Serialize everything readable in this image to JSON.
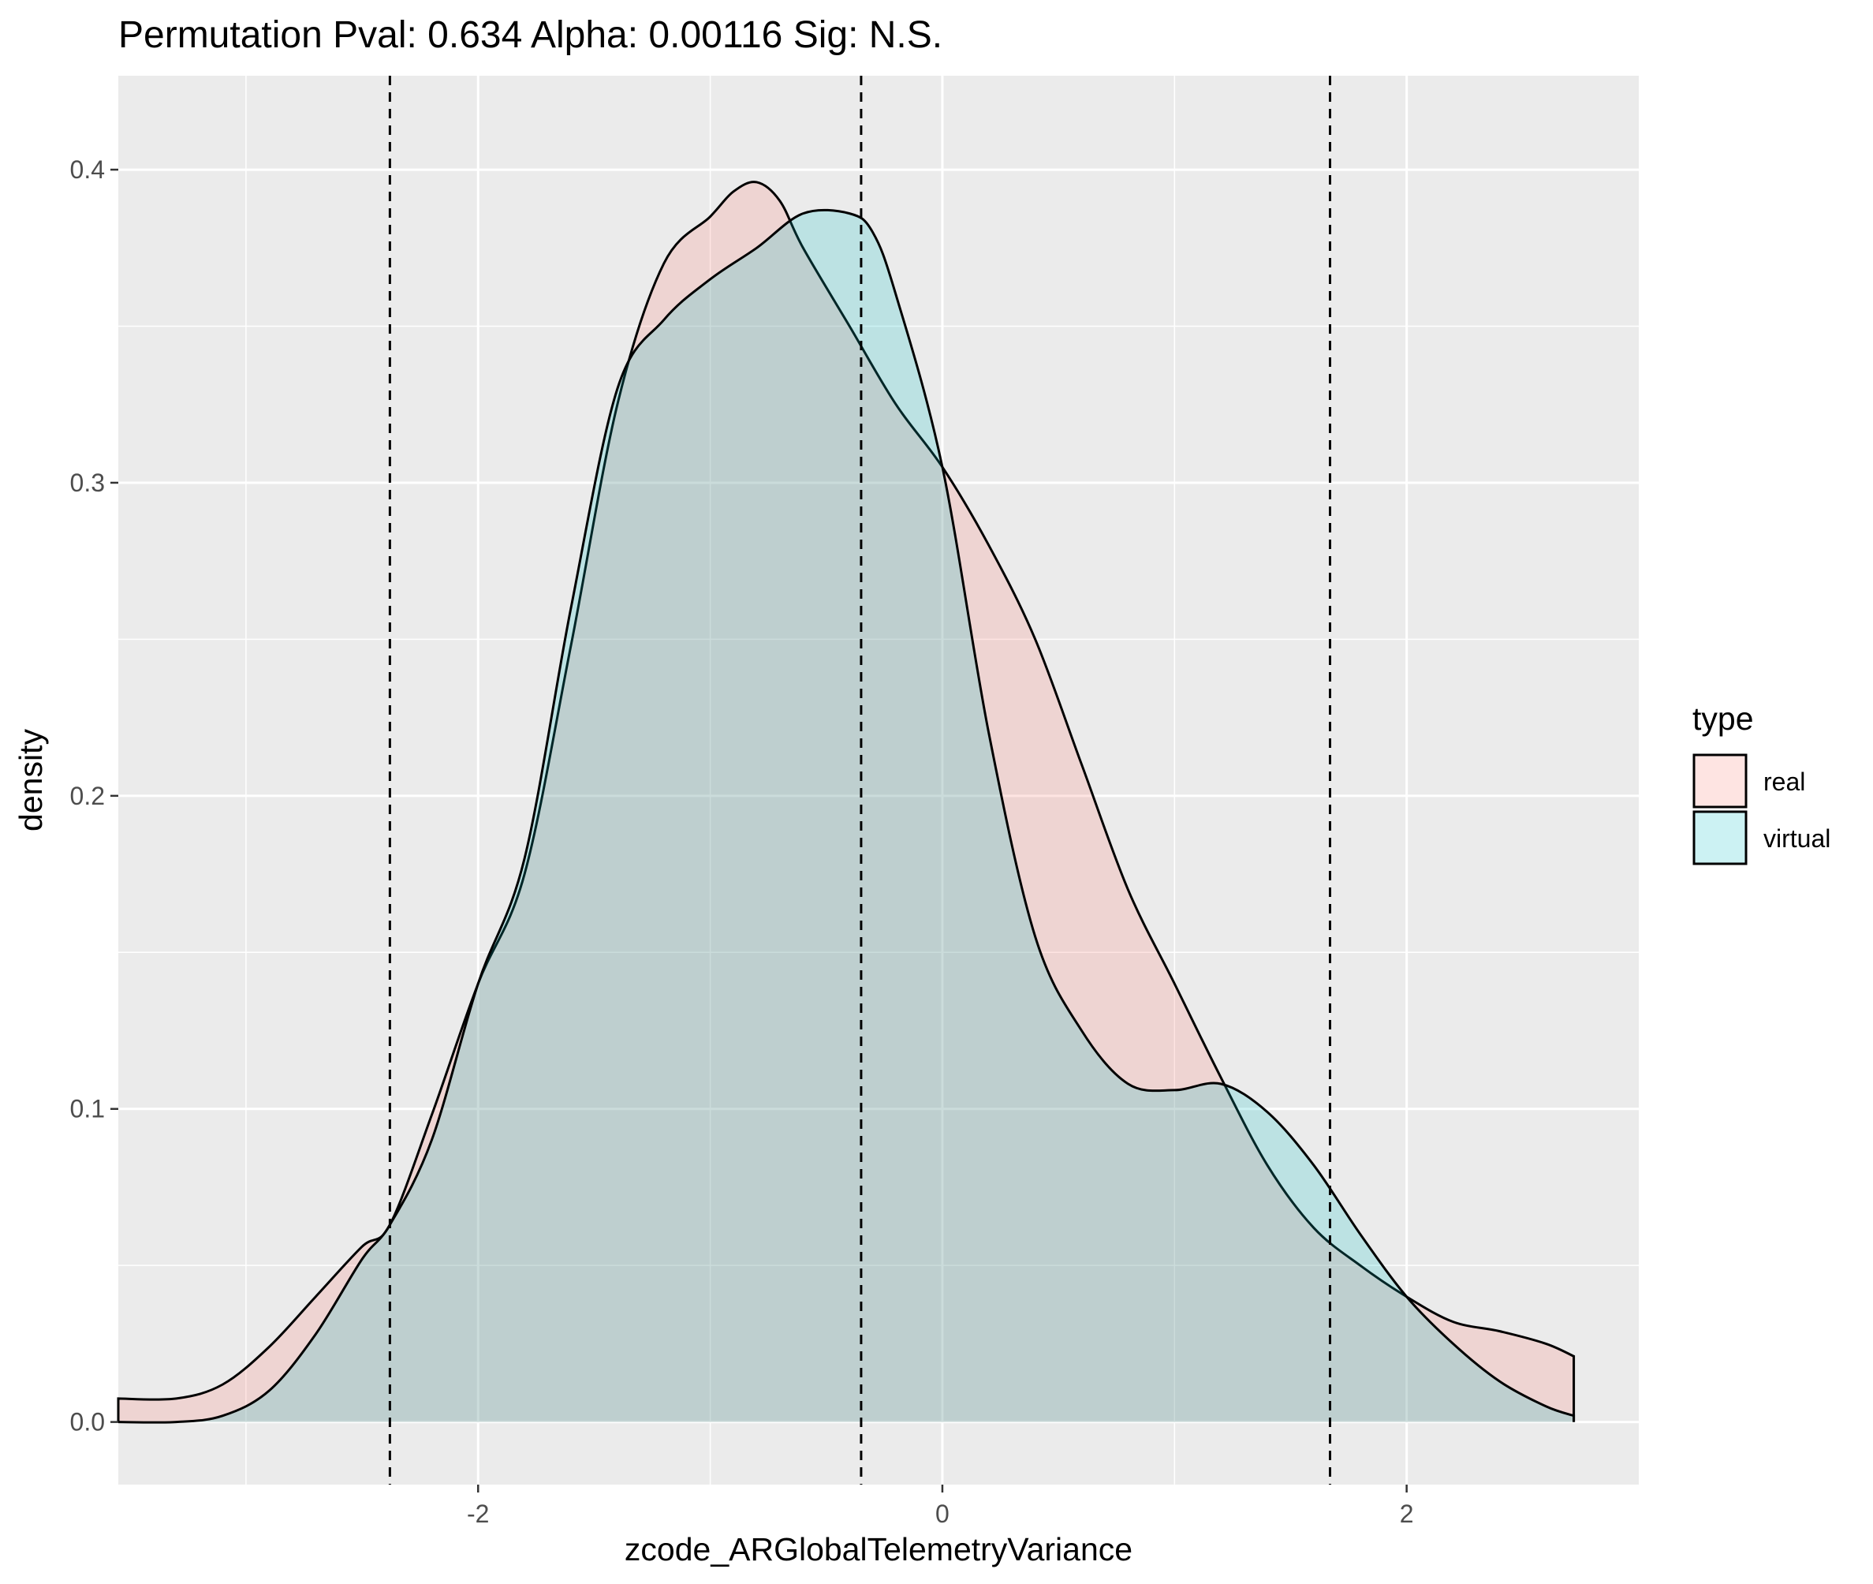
{
  "chart_data": {
    "type": "area",
    "title": "Permutation Pval: 0.634 Alpha: 0.00116 Sig: N.S.",
    "xlabel": "zcode_ARGlobalTelemetryVariance",
    "ylabel": "density",
    "xlim": [
      -3.55,
      3.0
    ],
    "ylim": [
      -0.02,
      0.43
    ],
    "x_ticks": [
      -2,
      0,
      2
    ],
    "x_tick_labels": [
      "-2",
      "0",
      "2"
    ],
    "y_ticks": [
      0.0,
      0.1,
      0.2,
      0.3,
      0.4
    ],
    "y_tick_labels": [
      "0.0",
      "0.1",
      "0.2",
      "0.3",
      "0.4"
    ],
    "grid": true,
    "legend": {
      "title": "type",
      "position": "right",
      "entries": [
        {
          "label": "real",
          "color": "#f8766d"
        },
        {
          "label": "virtual",
          "color": "#00bfc4"
        }
      ]
    },
    "vlines": [
      -2.38,
      -0.35,
      1.67
    ],
    "series": [
      {
        "name": "real",
        "color": "#f8766d",
        "x": [
          -3.55,
          -3.3,
          -3.1,
          -2.9,
          -2.7,
          -2.5,
          -2.38,
          -2.2,
          -2.0,
          -1.8,
          -1.6,
          -1.4,
          -1.2,
          -1.0,
          -0.9,
          -0.8,
          -0.7,
          -0.6,
          -0.4,
          -0.2,
          0.0,
          0.2,
          0.4,
          0.6,
          0.8,
          1.0,
          1.2,
          1.4,
          1.6,
          1.8,
          2.0,
          2.2,
          2.4,
          2.6,
          2.72
        ],
        "y": [
          0.0075,
          0.0075,
          0.012,
          0.024,
          0.04,
          0.056,
          0.063,
          0.098,
          0.14,
          0.175,
          0.248,
          0.325,
          0.37,
          0.385,
          0.393,
          0.396,
          0.39,
          0.375,
          0.35,
          0.325,
          0.305,
          0.28,
          0.25,
          0.21,
          0.17,
          0.14,
          0.11,
          0.082,
          0.062,
          0.05,
          0.04,
          0.032,
          0.029,
          0.025,
          0.021
        ]
      },
      {
        "name": "virtual",
        "color": "#00bfc4",
        "x": [
          -3.55,
          -3.3,
          -3.1,
          -2.9,
          -2.7,
          -2.5,
          -2.38,
          -2.2,
          -2.0,
          -1.8,
          -1.6,
          -1.4,
          -1.2,
          -1.0,
          -0.8,
          -0.6,
          -0.4,
          -0.3,
          -0.2,
          0.0,
          0.2,
          0.4,
          0.6,
          0.8,
          1.0,
          1.2,
          1.4,
          1.6,
          1.8,
          2.0,
          2.2,
          2.4,
          2.6,
          2.72
        ],
        "y": [
          0.0,
          0.0,
          0.002,
          0.01,
          0.028,
          0.052,
          0.063,
          0.09,
          0.14,
          0.18,
          0.26,
          0.33,
          0.352,
          0.365,
          0.375,
          0.386,
          0.386,
          0.38,
          0.36,
          0.305,
          0.22,
          0.155,
          0.125,
          0.108,
          0.106,
          0.108,
          0.099,
          0.082,
          0.06,
          0.04,
          0.025,
          0.013,
          0.005,
          0.002
        ]
      }
    ]
  }
}
